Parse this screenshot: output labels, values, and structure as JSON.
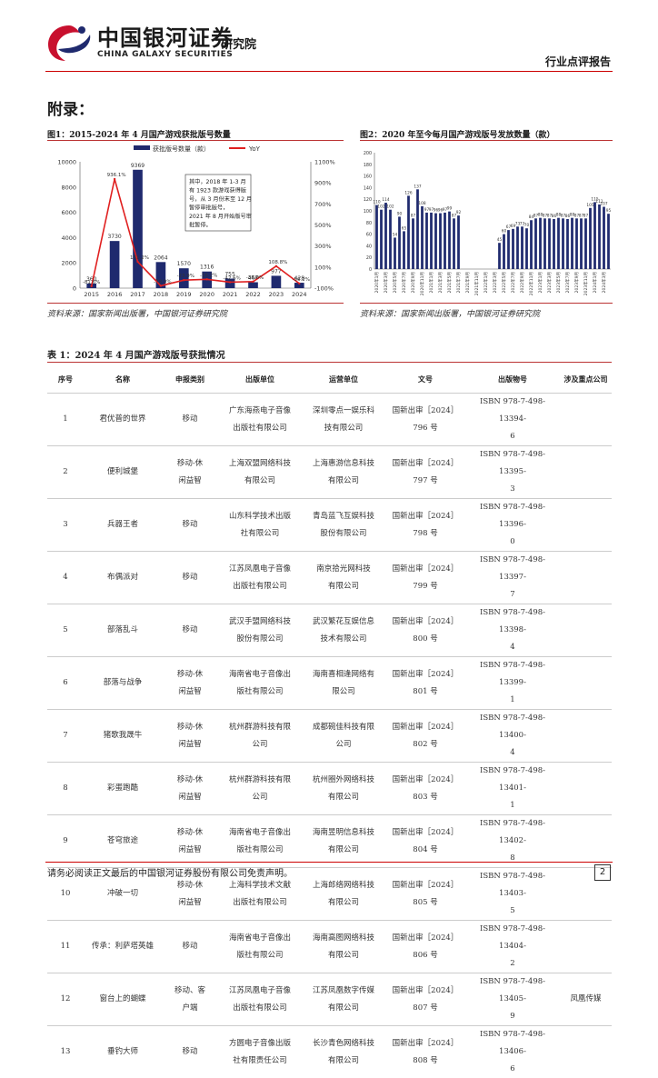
{
  "header": {
    "brand_cn": "中国银河证券",
    "institute": "研究院",
    "brand_en": "CHINA GALAXY SECURITIES",
    "doc_type": "行业点评报告"
  },
  "section_title": "附录：",
  "figure1": {
    "caption": "图1：2015-2024 年 4 月国产游戏获批版号数量",
    "source": "资料来源：国家新闻出版署，中国银河证券研究院",
    "annotation": [
      "其中，2018 年 1-3 月",
      "有 1923 款游戏获得版",
      "号，从 3 月份末至 12 月",
      "暂停审批版号，",
      "2021 年 8 月开始版号审",
      "批暂停。"
    ],
    "colors": {
      "bar": "#1f2a6e",
      "line": "#e02020"
    }
  },
  "figure2": {
    "caption": "图2：2020 年至今每月国产游戏版号发放数量（款）",
    "source": "资料来源：国家新闻出版署，中国银河证券研究院",
    "colors": {
      "bar": "#1f2a6e"
    }
  },
  "chart_data": [
    {
      "type": "bar",
      "title": "2015-2024 年 4 月国产游戏获批版号数量",
      "categories": [
        "2015",
        "2016",
        "2017",
        "2018",
        "2019",
        "2020",
        "2021",
        "2022",
        "2023",
        "2024"
      ],
      "series": [
        {
          "name": "获批版号数量（款）",
          "type": "bar",
          "axis": "left",
          "values": [
            360,
            3730,
            9369,
            2064,
            1570,
            1316,
            755,
            468,
            977,
            428
          ],
          "labels": [
            "360",
            "3730",
            "9369",
            "2064",
            "1570",
            "1316",
            "755",
            "468",
            "977",
            "428"
          ]
        },
        {
          "name": "YoY",
          "type": "line",
          "axis": "right",
          "values": [
            -81.6,
            936,
            151,
            -78,
            -24,
            -16,
            -43,
            -38,
            109,
            -56
          ],
          "labels": [
            "-81.6%",
            "936.1%",
            "151.2%",
            "-78.0%",
            "-23.9%",
            "-16.2%",
            "-42.6%",
            "-38.0%",
            "108.8%",
            "-56.2%"
          ]
        }
      ],
      "yticks_left": [
        "0",
        "2000",
        "4000",
        "6000",
        "8000",
        "10000"
      ],
      "yticks_right": [
        "-100%",
        "100%",
        "300%",
        "500%",
        "700%",
        "900%",
        "1100%"
      ],
      "ylim_left": [
        0,
        10000
      ],
      "ylim_right": [
        -100,
        1100
      ],
      "legend": "top"
    },
    {
      "type": "bar",
      "title": "2020 年至今每月国产游戏版号发放数量（款）",
      "categories": [
        "2020年1月",
        "2020年2月",
        "2020年3月",
        "2020年4月",
        "2020年5月",
        "2020年6月",
        "2020年7月",
        "2020年8月",
        "2020年9月",
        "2020年10月",
        "2020年11月",
        "2020年12月",
        "2021年1月",
        "2021年2月",
        "2021年3月",
        "2021年4月",
        "2021年5月",
        "2021年6月",
        "2021年7月",
        "2021年8月",
        "2021年9月",
        "2021年10月",
        "2021年11月",
        "2021年12月",
        "2022年1月",
        "2022年2月",
        "2022年3月",
        "2022年4月",
        "2022年5月",
        "2022年6月",
        "2022年7月",
        "2022年8月",
        "2022年9月",
        "2022年10月",
        "2022年11月",
        "2022年12月",
        "2023年1月",
        "2023年2月",
        "2023年3月",
        "2023年4月",
        "2023年5月",
        "2023年6月",
        "2023年7月",
        "2023年8月",
        "2023年9月",
        "2023年10月",
        "2023年11月",
        "2023年12月",
        "2024年1月",
        "2024年2月",
        "2024年3月",
        "2024年4月"
      ],
      "xtick_labels": [
        "2020年1月",
        "2020年3月",
        "2020年5月",
        "2020年7月",
        "2020年9月",
        "2020年11月",
        "2021年1月",
        "2021年3月",
        "2021年5月",
        "2021年7月",
        "2021年9月",
        "2021年11月",
        "2022年1月",
        "2022年3月",
        "2022年5月",
        "2022年7月",
        "2022年9月",
        "2022年11月",
        "2023年1月",
        "2023年3月",
        "2023年5月",
        "2023年7月",
        "2023年9月",
        "2023年11月",
        "2024年1月",
        "2024年3月"
      ],
      "values": [
        110,
        102,
        114,
        102,
        54,
        90,
        65,
        126,
        87,
        137,
        108,
        97,
        97,
        96,
        96,
        97,
        99,
        87,
        92,
        0,
        0,
        0,
        0,
        0,
        0,
        0,
        0,
        45,
        60,
        67,
        69,
        73,
        73,
        70,
        84,
        87,
        88,
        87,
        87,
        86,
        88,
        87,
        86,
        88,
        87,
        87,
        87,
        105,
        115,
        111,
        107,
        95
      ],
      "labels": [
        "110",
        "102",
        "114",
        "102",
        "54",
        "90",
        "65",
        "126",
        "87",
        "137",
        "108",
        "97",
        "97",
        "96",
        "96",
        "97",
        "99",
        "87",
        "92",
        "",
        "",
        "",
        "",
        "",
        "",
        "",
        "",
        "45",
        "60",
        "67",
        "69",
        "73",
        "73",
        "70",
        "84",
        "87",
        "88",
        "87",
        "87",
        "86",
        "88",
        "87",
        "86",
        "88",
        "87",
        "87",
        "87",
        "105",
        "115",
        "111",
        "107",
        "95"
      ],
      "yticks": [
        "0",
        "20",
        "40",
        "60",
        "80",
        "100",
        "120",
        "140",
        "160",
        "180",
        "200"
      ],
      "ylim": [
        0,
        200
      ]
    }
  ],
  "table": {
    "caption": "表 1：2024 年 4 月国产游戏版号获批情况",
    "headers": [
      "序号",
      "名称",
      "申报类别",
      "出版单位",
      "运营单位",
      "文号",
      "出版物号",
      "涉及重点公司"
    ],
    "rows": [
      [
        "1",
        "君优普的世界",
        "移动",
        "广东海燕电子音像\n出版社有限公司",
        "深圳零点一娱乐科\n技有限公司",
        "国新出审［2024］\n796 号",
        "ISBN 978-7-498-13394-\n6",
        ""
      ],
      [
        "2",
        "便利城堡",
        "移动-休\n闲益智",
        "上海双盟网络科技\n有限公司",
        "上海惠游信息科技\n有限公司",
        "国新出审［2024］\n797 号",
        "ISBN 978-7-498-13395-\n3",
        ""
      ],
      [
        "3",
        "兵器王者",
        "移动",
        "山东科学技术出版\n社有限公司",
        "青岛蓝飞互娱科技\n股份有限公司",
        "国新出审［2024］\n798 号",
        "ISBN 978-7-498-13396-\n0",
        ""
      ],
      [
        "4",
        "布偶派对",
        "移动",
        "江苏凤凰电子音像\n出版社有限公司",
        "南京拾光网科技\n有限公司",
        "国新出审［2024］\n799 号",
        "ISBN 978-7-498-13397-\n7",
        ""
      ],
      [
        "5",
        "部落乱斗",
        "移动",
        "武汉手盟网络科技\n股份有限公司",
        "武汉繁花互娱信息\n技术有限公司",
        "国新出审［2024］\n800 号",
        "ISBN 978-7-498-13398-\n4",
        ""
      ],
      [
        "6",
        "部落与战争",
        "移动-休\n闲益智",
        "海南省电子音像出\n版社有限公司",
        "海南喜相逢网络有\n限公司",
        "国新出审［2024］\n801 号",
        "ISBN 978-7-498-13399-\n1",
        ""
      ],
      [
        "7",
        "猪歌我晟牛",
        "移动-休\n闲益智",
        "杭州群游科技有限\n公司",
        "成都碗佳科技有限\n公司",
        "国新出审［2024］\n802 号",
        "ISBN 978-7-498-13400-\n4",
        ""
      ],
      [
        "8",
        "彩蛋跑酷",
        "移动-休\n闲益智",
        "杭州群游科技有限\n公司",
        "杭州圈外网络科技\n有限公司",
        "国新出审［2024］\n803 号",
        "ISBN 978-7-498-13401-\n1",
        ""
      ],
      [
        "9",
        "苍穹旅途",
        "移动-休\n闲益智",
        "海南省电子音像出\n版社有限公司",
        "海南昱明信息科技\n有限公司",
        "国新出审［2024］\n804 号",
        "ISBN 978-7-498-13402-\n8",
        ""
      ],
      [
        "10",
        "冲破一切",
        "移动-休\n闲益智",
        "上海科学技术文献\n出版社有限公司",
        "上海郎络网络科技\n有限公司",
        "国新出审［2024］\n805 号",
        "ISBN 978-7-498-13403-\n5",
        ""
      ],
      [
        "11",
        "传承：利萨塔英雄",
        "移动",
        "海南省电子音像出\n版社有限公司",
        "海南高图网络科技\n有限公司",
        "国新出审［2024］\n806 号",
        "ISBN 978-7-498-13404-\n2",
        ""
      ],
      [
        "12",
        "窗台上的蝴蝶",
        "移动、客\n户端",
        "江苏凤凰电子音像\n出版社有限公司",
        "江苏凤凰数字传媒\n有限公司",
        "国新出审［2024］\n807 号",
        "ISBN 978-7-498-13405-\n9",
        "凤凰传媒"
      ],
      [
        "13",
        "垂钓大师",
        "移动",
        "方圆电子音像出版\n社有限责任公司",
        "长沙青色网络科技\n有限公司",
        "国新出审［2024］\n808 号",
        "ISBN 978-7-498-13406-\n6",
        ""
      ]
    ]
  },
  "footer": {
    "disclaimer": "请务必阅读正文最后的中国银河证券股份有限公司免责声明。",
    "page": "2"
  }
}
